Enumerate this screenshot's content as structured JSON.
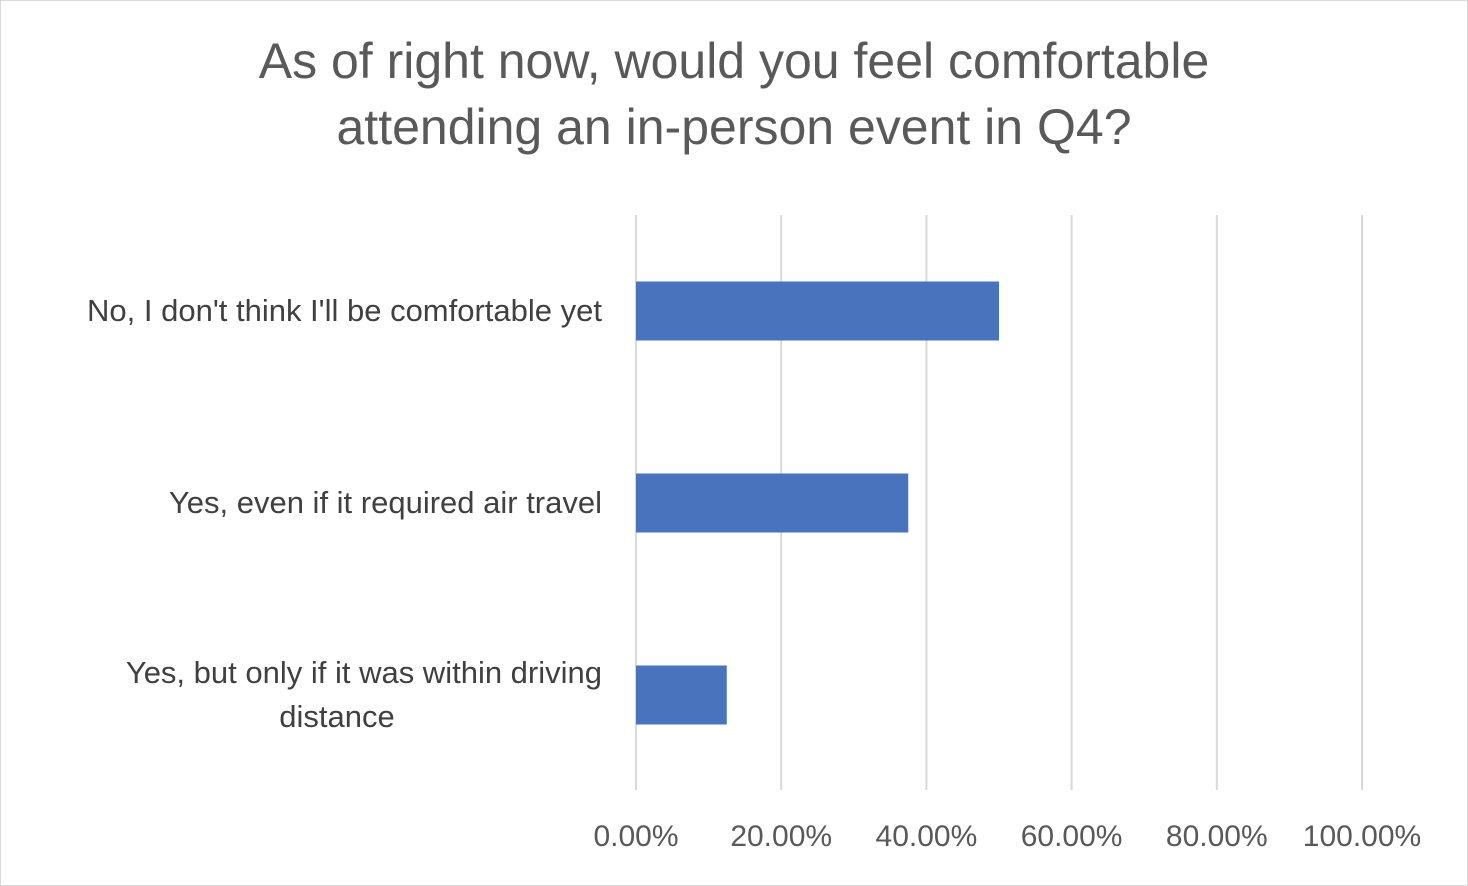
{
  "chart_data": {
    "type": "bar",
    "orientation": "horizontal",
    "title_lines": [
      "As of right now, would you feel comfortable",
      "attending an in-person event in Q4?"
    ],
    "categories": [
      [
        "No, I don't think I'll be comfortable yet"
      ],
      [
        "Yes, even if it required air travel"
      ],
      [
        "Yes, but only if it was within driving",
        "distance"
      ]
    ],
    "values": [
      0.5,
      0.375,
      0.125
    ],
    "xlim": [
      0,
      1
    ],
    "x_ticks": [
      0,
      0.2,
      0.4,
      0.6,
      0.8,
      1.0
    ],
    "x_tick_labels": [
      "0.00%",
      "20.00%",
      "40.00%",
      "60.00%",
      "80.00%",
      "100.00%"
    ],
    "grid": "vertical",
    "legend": "none",
    "bar_color": "#4a73be",
    "grid_color": "#d9d9d9"
  }
}
